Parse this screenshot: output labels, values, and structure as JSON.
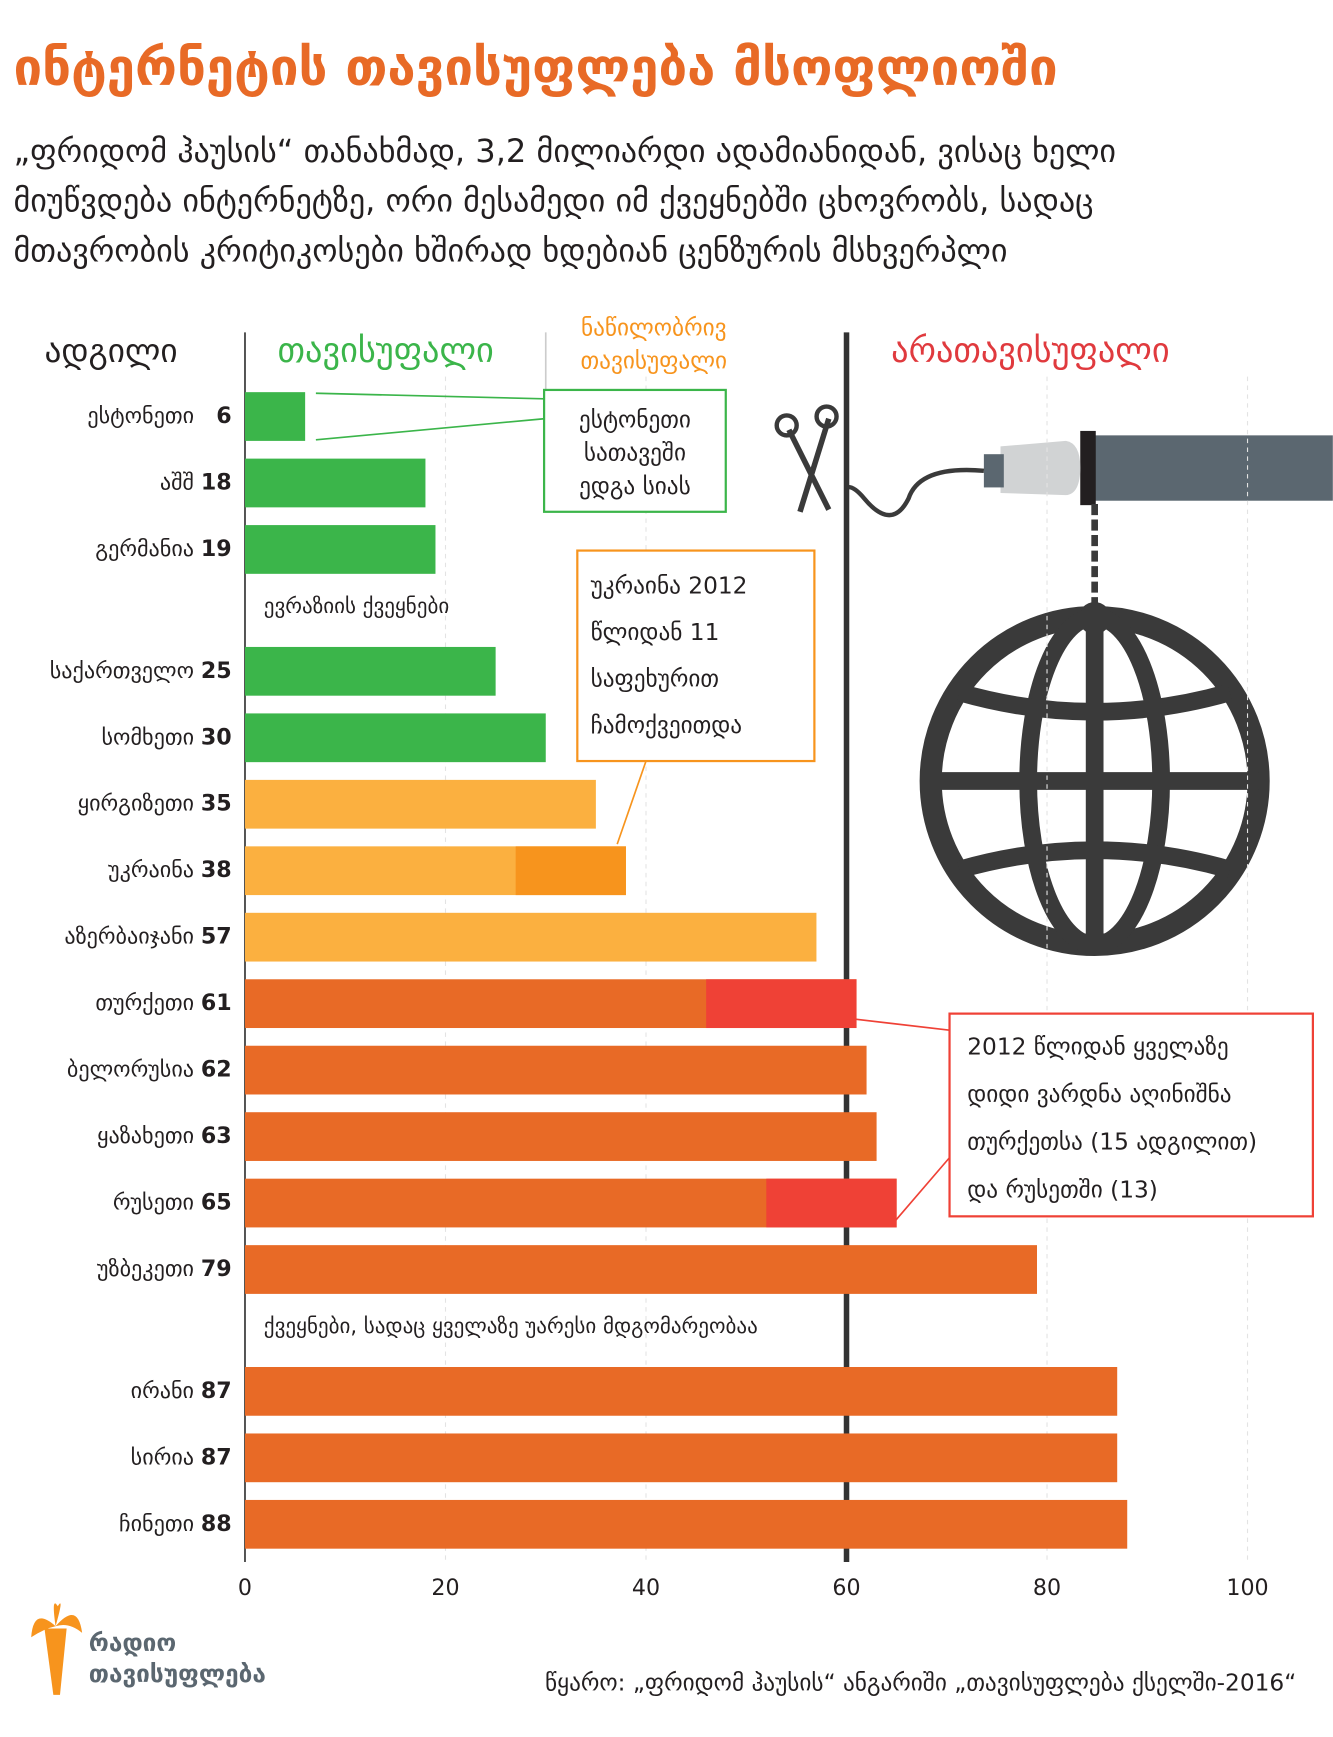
{
  "chart_data": {
    "type": "bar",
    "title": "ინტერნეტის თავისუფლება მსოფლიოში",
    "subtitle": [
      "„ფრიდომ ჰაუსის“ თანახმად, 3,2 მილიარდი ადამიანიდან, ვისაც ხელი",
      "მიუწვდება ინტერნეტზე, ორი მესამედი იმ ქვეყნებში ცხოვრობს, სადაც",
      "მთავრობის კრიტიკოსები ხშირად ხდებიან ცენზურის მსხვერპლი"
    ],
    "category_header": "ადგილი",
    "zones": [
      {
        "label": [
          "თავისუფალი"
        ],
        "range": [
          0,
          30
        ],
        "color": "#3bb54a",
        "label_color": "#3bb54a"
      },
      {
        "label": [
          "ნაწილობრივ",
          "თავისუფალი"
        ],
        "range": [
          30,
          60
        ],
        "color": "#fbb040",
        "label_color": "#f7941d",
        "change_color": "#f7941d"
      },
      {
        "label": [
          "არათავისუფალი"
        ],
        "range": [
          60,
          100
        ],
        "color": "#e86a26",
        "label_color": "#e03a3e",
        "change_color": "#ef4136"
      }
    ],
    "groups": [
      {
        "label": null,
        "categories": [
          "ესტონეთი",
          "აშშ",
          "გერმანია"
        ],
        "values": [
          6,
          18,
          19
        ],
        "changes": [
          null,
          null,
          null
        ]
      },
      {
        "label": "ევრაზიის ქვეყნები",
        "categories": [
          "საქართველო",
          "სომხეთი",
          "ყირგიზეთი",
          "უკრაინა",
          "აზერბაიჯანი",
          "თურქეთი",
          "ბელორუსია",
          "ყაზახეთი",
          "რუსეთი",
          "უზბეკეთი"
        ],
        "values": [
          25,
          30,
          35,
          38,
          57,
          61,
          62,
          63,
          65,
          79
        ],
        "changes": [
          null,
          null,
          null,
          11,
          null,
          15,
          null,
          null,
          13,
          null
        ]
      },
      {
        "label": "ქვეყნები, სადაც ყველაზე უარესი მდგომარეობაა",
        "categories": [
          "ირანი",
          "სირია",
          "ჩინეთი"
        ],
        "values": [
          87,
          87,
          88
        ],
        "changes": [
          null,
          null,
          null
        ]
      }
    ],
    "xlim": [
      0,
      100
    ],
    "xticks": [
      0,
      20,
      40,
      60,
      80,
      100
    ],
    "annotations": [
      {
        "lines": [
          "ესტონეთი",
          "სათავეში",
          "ედგა სიას"
        ],
        "color": "#3bb54a"
      },
      {
        "lines": [
          "უკრაინა 2012",
          "წლიდან 11",
          "საფეხურით",
          "ჩამოქვეითდა"
        ],
        "color": "#f7941d"
      },
      {
        "lines": [
          "2012 წლიდან ყველაზე",
          "დიდი ვარდნა აღინიშნა",
          "თურქეთსა (15 ადგილით)",
          "და რუსეთში (13)"
        ],
        "color": "#ef4136"
      }
    ],
    "logo": [
      "რადიო",
      "თავისუფლება"
    ],
    "source": "წყარო: „ფრიდომ ჰაუსის“ ანგარიში „თავისუფლება ქსელში-2016“"
  }
}
